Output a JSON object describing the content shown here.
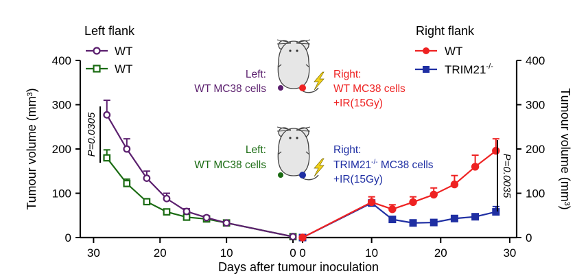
{
  "colors": {
    "wt_left": "#5b1f6e",
    "wt_left_2": "#1a6b12",
    "wt_right": "#ee2222",
    "trim21": "#1f2fa3",
    "lightning": "#f3d21a"
  },
  "chart_data": {
    "type": "line",
    "xlabel": "Days after tumour inoculation",
    "y_left_label": "Tumour volume (mm³)",
    "y_right_label": "Tumour volume (mm³)",
    "ylim": [
      0,
      400
    ],
    "y_ticks": [
      "0",
      "100",
      "200",
      "300",
      "400"
    ],
    "left_panel": {
      "title": "Left flank",
      "x_ticks": [
        "30",
        "20",
        "10",
        "0"
      ],
      "xlim": [
        32,
        0
      ],
      "series": [
        {
          "name": "WT",
          "color": "#5b1f6e",
          "marker": "circle",
          "x": [
            28,
            25,
            22,
            19,
            16,
            13,
            10,
            0
          ],
          "values": [
            277,
            200,
            134,
            88,
            59,
            45,
            33,
            2
          ],
          "errors": [
            33,
            23,
            16,
            12,
            6,
            4,
            3,
            0
          ]
        },
        {
          "name": "WT",
          "color": "#1a6b12",
          "marker": "square",
          "x": [
            28,
            25,
            22,
            19,
            16,
            13,
            10,
            0
          ],
          "values": [
            180,
            122,
            81,
            58,
            46,
            42,
            33,
            2
          ],
          "errors": [
            18,
            10,
            5,
            4,
            3,
            3,
            3,
            0
          ]
        }
      ],
      "annotation": "P=0.0305"
    },
    "right_panel": {
      "title": "Right flank",
      "x_ticks": [
        "0",
        "10",
        "20",
        "30"
      ],
      "xlim": [
        0,
        31
      ],
      "series": [
        {
          "name": "WT",
          "color": "#ee2222",
          "marker": "circle",
          "x": [
            0,
            10,
            13,
            16,
            19,
            22,
            25,
            28
          ],
          "values": [
            0,
            80,
            64,
            80,
            97,
            120,
            160,
            196
          ],
          "errors": [
            0,
            12,
            10,
            12,
            15,
            20,
            26,
            27
          ]
        },
        {
          "name": "TRIM21",
          "name_sup": "-/-",
          "color": "#1f2fa3",
          "marker": "square",
          "x": [
            0,
            10,
            13,
            16,
            19,
            22,
            25,
            28
          ],
          "values": [
            0,
            78,
            41,
            33,
            34,
            43,
            47,
            58
          ],
          "errors": [
            0,
            6,
            5,
            3,
            3,
            4,
            5,
            12
          ]
        }
      ],
      "annotation": "P=0.0035"
    }
  },
  "schematic": {
    "top": {
      "left_text_1": "Left:",
      "left_text_2": "WT MC38 cells",
      "right_text_1": "Right:",
      "right_text_2": "WT MC38 cells",
      "right_text_3": "+IR(15Gy)"
    },
    "bottom": {
      "left_text_1": "Left:",
      "left_text_2": "WT MC38 cells",
      "right_text_1": "Right:",
      "right_text_2a": "TRIM21",
      "right_text_2sup": "-/-",
      "right_text_2b": " MC38 cells",
      "right_text_3": "+IR(15Gy)"
    }
  }
}
